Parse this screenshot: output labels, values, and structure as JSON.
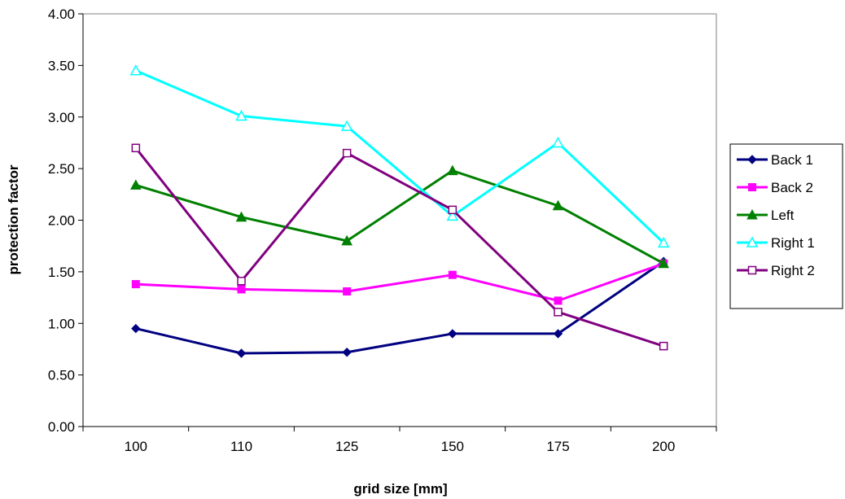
{
  "chart_data": {
    "type": "line",
    "title": "",
    "xlabel": "grid size [mm]",
    "ylabel": "protection factor",
    "categories": [
      "100",
      "110",
      "125",
      "150",
      "175",
      "200"
    ],
    "ylim": [
      0,
      4
    ],
    "yticks": [
      "0.00",
      "0.50",
      "1.00",
      "1.50",
      "2.00",
      "2.50",
      "3.00",
      "3.50",
      "4.00"
    ],
    "grid": false,
    "legend_position": "right",
    "series": [
      {
        "name": "Back 1",
        "color": "#000080",
        "marker": "diamond",
        "values": [
          0.95,
          0.71,
          0.72,
          0.9,
          0.9,
          1.6
        ]
      },
      {
        "name": "Back 2",
        "color": "#ff00ff",
        "marker": "square",
        "values": [
          1.38,
          1.33,
          1.31,
          1.47,
          1.22,
          1.58
        ]
      },
      {
        "name": "Left",
        "color": "#008000",
        "marker": "triangle",
        "values": [
          2.34,
          2.03,
          1.8,
          2.48,
          2.14,
          1.58
        ]
      },
      {
        "name": "Right 1",
        "color": "#00ffff",
        "marker": "triangle-open",
        "values": [
          3.45,
          3.01,
          2.91,
          2.04,
          2.75,
          1.78
        ]
      },
      {
        "name": "Right 2",
        "color": "#800080",
        "marker": "square-open",
        "values": [
          2.7,
          1.41,
          2.65,
          2.1,
          1.11,
          0.78
        ]
      }
    ]
  }
}
